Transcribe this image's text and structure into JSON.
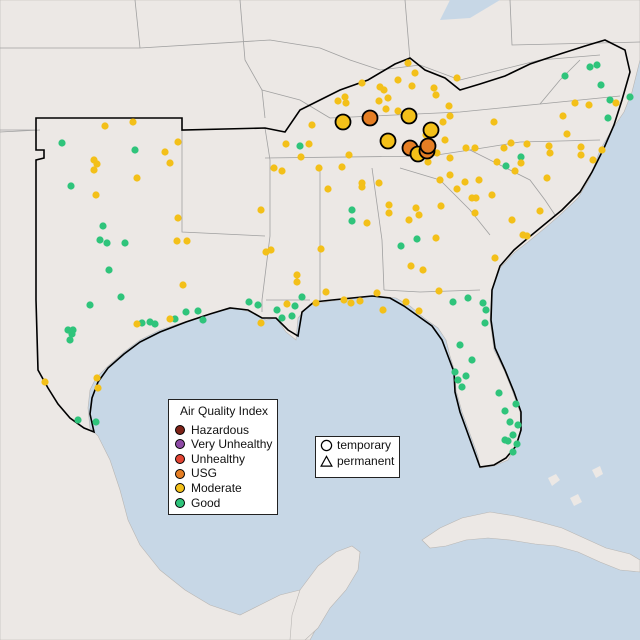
{
  "legend": {
    "title": "Air Quality Index",
    "items": [
      {
        "label": "Hazardous",
        "color": "#7e2318"
      },
      {
        "label": "Very Unhealthy",
        "color": "#8e4aa6"
      },
      {
        "label": "Unhealthy",
        "color": "#e34433"
      },
      {
        "label": "USG",
        "color": "#e57e24"
      },
      {
        "label": "Moderate",
        "color": "#f3c019"
      },
      {
        "label": "Good",
        "color": "#2fc47b"
      }
    ]
  },
  "monitor_types": {
    "items": [
      {
        "label": "temporary",
        "icon": "circle-icon"
      },
      {
        "label": "permanent",
        "icon": "triangle-icon"
      }
    ]
  },
  "colors": {
    "water": "#c7d7e6",
    "land": "#ece8e5",
    "region_border": "#000000",
    "state_border": "#a0a0a0"
  }
}
